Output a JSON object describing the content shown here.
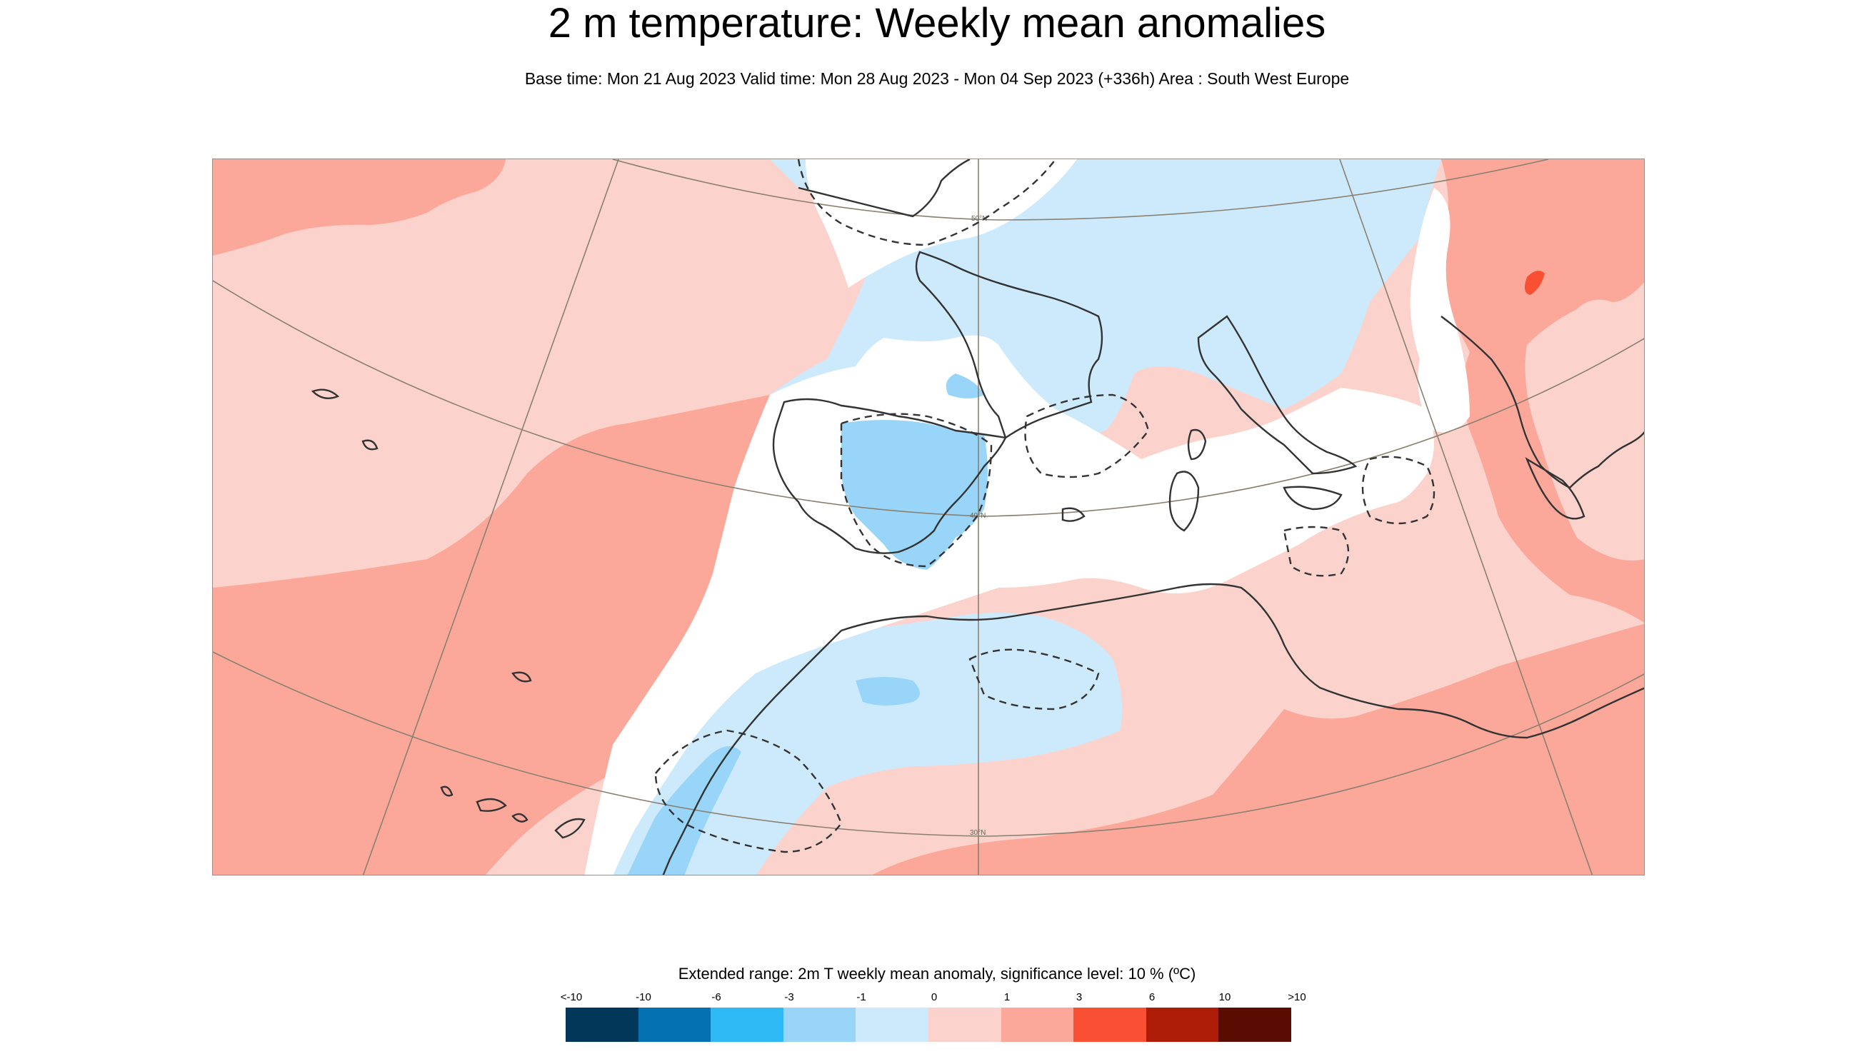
{
  "title": "2 m temperature: Weekly mean anomalies",
  "subtitle": "Base time: Mon 21 Aug 2023 Valid time: Mon 28 Aug 2023 - Mon 04 Sep 2023 (+336h) Area : South West Europe",
  "map": {
    "lat_labels": [
      "50°N",
      "40°N",
      "30°N"
    ],
    "colors": {
      "band_0_1": "#fcd3cc",
      "band_1_3": "#fba89b",
      "band_3_6": "#f9827a",
      "band_neg1_0": "#cdeafc",
      "band_neg3_neg1": "#98d5f8",
      "band_neutral": "#ffffff",
      "coast": "#333333",
      "grid": "#8a8070"
    }
  },
  "legend": {
    "title": "Extended range: 2m T weekly mean anomaly, significance level: 10 % (ºC)",
    "ticks": [
      "<-10",
      "-10",
      "-6",
      "-3",
      "-1",
      "0",
      "1",
      "3",
      "6",
      "10",
      ">10"
    ],
    "colors": [
      "#03375a",
      "#0472b2",
      "#2eb8f4",
      "#98d5f8",
      "#cdeafc",
      "#fcd3cc",
      "#fba89b",
      "#f94f32",
      "#ad1c07",
      "#5a0c02"
    ]
  }
}
